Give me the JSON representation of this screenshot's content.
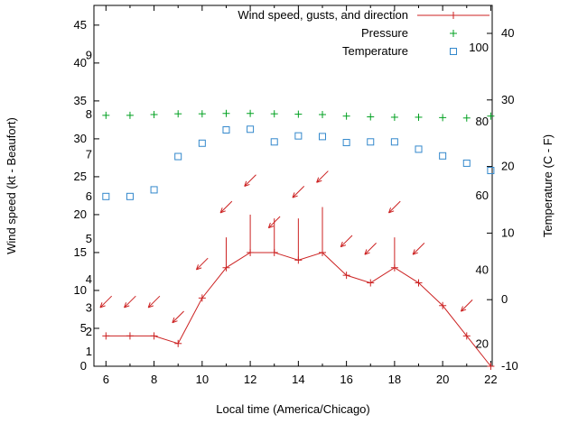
{
  "chart_data": {
    "type": "line",
    "title": "",
    "xlabel": "Local time (America/Chicago)",
    "ylabel_left": "Wind speed (kt - Beaufort)",
    "ylabel_right": "Temperature (C - F)",
    "legend_position": "top-right-inside",
    "x_axis": {
      "min": 5.5,
      "max": 22.06,
      "tick_labels": [
        6,
        8,
        10,
        12,
        14,
        16,
        18,
        20,
        22
      ],
      "minor_ticks": [
        7,
        9,
        11,
        13,
        15,
        17,
        19,
        21
      ]
    },
    "left_axis": {
      "min": 0,
      "max": 47.6,
      "ticks": [
        0,
        5,
        10,
        15,
        20,
        25,
        30,
        35,
        40,
        45
      ]
    },
    "right_axis": {
      "min": -10,
      "max": 44.2,
      "ticks": [
        -10,
        0,
        10,
        20,
        30,
        40
      ]
    },
    "beaufort_labels": [
      {
        "label": "1",
        "kt": 1.9
      },
      {
        "label": "2",
        "kt": 4.5
      },
      {
        "label": "3",
        "kt": 7.7
      },
      {
        "label": "4",
        "kt": 11.4
      },
      {
        "label": "5",
        "kt": 16.8
      },
      {
        "label": "6",
        "kt": 22.4
      },
      {
        "label": "7",
        "kt": 27.9
      },
      {
        "label": "8",
        "kt": 33.2
      },
      {
        "label": "9",
        "kt": 41.0
      }
    ],
    "fahrenheit_labels": [
      {
        "label": "20",
        "c": -6.7
      },
      {
        "label": "40",
        "c": 4.4
      },
      {
        "label": "60",
        "c": 15.6
      },
      {
        "label": "80",
        "c": 26.7
      },
      {
        "label": "100",
        "c": 37.8
      }
    ],
    "hours": [
      6,
      7,
      8,
      9,
      10,
      11,
      12,
      13,
      14,
      15,
      16,
      17,
      18,
      19,
      20,
      21,
      22
    ],
    "series": [
      {
        "name": "Wind speed, gusts, and direction",
        "style": "linespoints",
        "marker": "plus",
        "color": "#cc2222",
        "axis": "left",
        "values": [
          4,
          4,
          4,
          3,
          9,
          13,
          15,
          15,
          14,
          15,
          12,
          11,
          13,
          11,
          8,
          4,
          0
        ]
      },
      {
        "name": "Pressure",
        "style": "points",
        "marker": "plus",
        "color": "#00a020",
        "axis": "left",
        "values": [
          33.1,
          33.1,
          33.2,
          33.3,
          33.3,
          33.35,
          33.35,
          33.3,
          33.25,
          33.2,
          33.0,
          32.9,
          32.85,
          32.85,
          32.8,
          32.75,
          33.0
        ]
      },
      {
        "name": "Temperature",
        "style": "points",
        "marker": "square",
        "color": "#3388cc",
        "axis": "right",
        "values": [
          15.5,
          15.5,
          16.5,
          21.5,
          23.5,
          25.5,
          25.6,
          23.7,
          24.6,
          24.5,
          23.6,
          23.7,
          23.7,
          22.6,
          21.6,
          20.5,
          19.4
        ]
      }
    ],
    "gusts": [
      {
        "h": 11,
        "to": 17
      },
      {
        "h": 12,
        "to": 20
      },
      {
        "h": 13,
        "to": 19.5
      },
      {
        "h": 14,
        "to": 19.5
      },
      {
        "h": 15,
        "to": 21
      },
      {
        "h": 18,
        "to": 17
      }
    ],
    "wind_arrows": [
      {
        "h": 6,
        "kt": 8.5,
        "dir": 135
      },
      {
        "h": 7,
        "kt": 8.5,
        "dir": 135
      },
      {
        "h": 8,
        "kt": 8.5,
        "dir": 135
      },
      {
        "h": 9,
        "kt": 6.5,
        "dir": 135
      },
      {
        "h": 10,
        "kt": 13.5,
        "dir": 135
      },
      {
        "h": 11,
        "kt": 21.0,
        "dir": 135
      },
      {
        "h": 12,
        "kt": 24.5,
        "dir": 135
      },
      {
        "h": 13,
        "kt": 19.0,
        "dir": 135
      },
      {
        "h": 14,
        "kt": 23.0,
        "dir": 135
      },
      {
        "h": 15,
        "kt": 25.0,
        "dir": 135
      },
      {
        "h": 16,
        "kt": 16.5,
        "dir": 135
      },
      {
        "h": 17,
        "kt": 15.5,
        "dir": 135
      },
      {
        "h": 18,
        "kt": 21.0,
        "dir": 135
      },
      {
        "h": 19,
        "kt": 15.5,
        "dir": 135
      },
      {
        "h": 21,
        "kt": 8.0,
        "dir": 135
      }
    ],
    "colors": {
      "axis": "#000000",
      "background": "#ffffff"
    }
  }
}
